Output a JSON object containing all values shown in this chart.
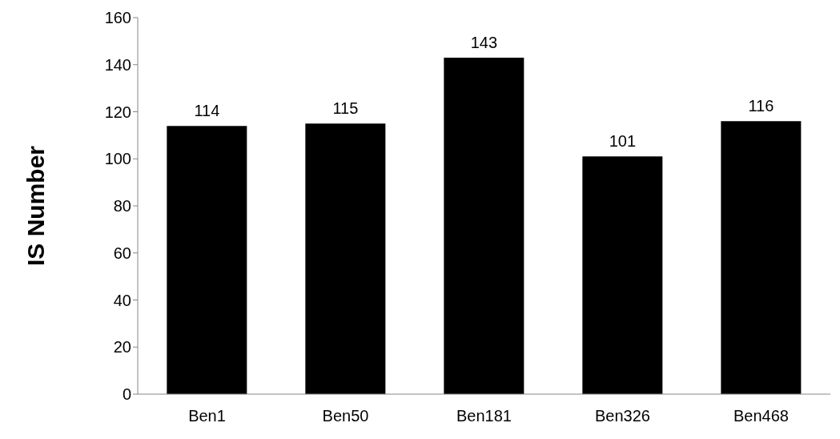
{
  "chart_data": {
    "type": "bar",
    "ylabel": "IS Number",
    "categories": [
      "Ben1",
      "Ben50",
      "Ben181",
      "Ben326",
      "Ben468"
    ],
    "values": [
      114,
      115,
      143,
      101,
      116
    ],
    "color": "#000000",
    "ylim": [
      0,
      160
    ],
    "yticks": [
      0,
      20,
      40,
      60,
      80,
      100,
      120,
      140,
      160
    ],
    "grid": false,
    "data_labels": true
  }
}
